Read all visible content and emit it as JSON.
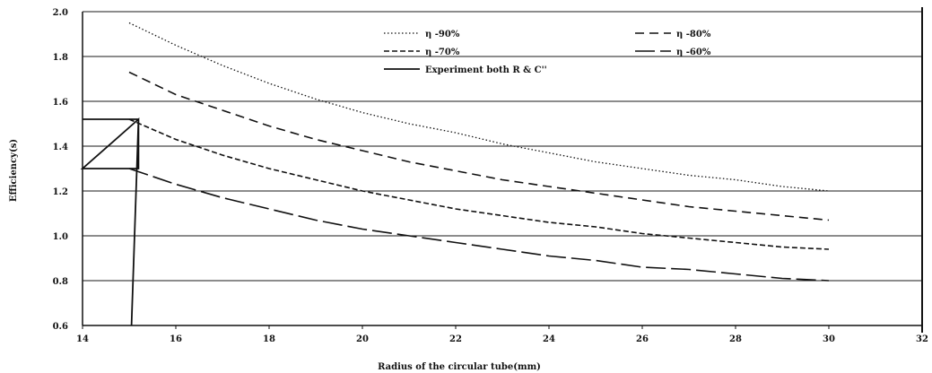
{
  "chart_data": {
    "type": "line",
    "title": "",
    "xlabel": "Radius of the circular tube(mm)",
    "ylabel": "Efficiency(s)",
    "xlim": [
      14,
      32
    ],
    "ylim": [
      0.6,
      2.0
    ],
    "xticks": [
      "14",
      "16",
      "18",
      "20",
      "22",
      "24",
      "26",
      "28",
      "30",
      "32"
    ],
    "yticks": [
      "0.6",
      "0.8",
      "1.0",
      "1.2",
      "1.4",
      "1.6",
      "1.8",
      "2.0"
    ],
    "grid": "horizontal",
    "legend_position": "top",
    "series": [
      {
        "name": "η -90%",
        "style": "dotted",
        "x": [
          15,
          16,
          17,
          18,
          19,
          20,
          21,
          22,
          23,
          24,
          25,
          26,
          27,
          28,
          29,
          30
        ],
        "y": [
          1.95,
          1.85,
          1.76,
          1.68,
          1.61,
          1.55,
          1.5,
          1.46,
          1.41,
          1.37,
          1.33,
          1.3,
          1.27,
          1.25,
          1.22,
          1.2
        ]
      },
      {
        "name": "η -80%",
        "style": "dashed",
        "x": [
          15,
          16,
          17,
          18,
          19,
          20,
          21,
          22,
          23,
          24,
          25,
          26,
          27,
          28,
          29,
          30
        ],
        "y": [
          1.73,
          1.63,
          1.56,
          1.49,
          1.43,
          1.38,
          1.33,
          1.29,
          1.25,
          1.22,
          1.19,
          1.16,
          1.13,
          1.11,
          1.09,
          1.07
        ]
      },
      {
        "name": "η -70%",
        "style": "short-dash",
        "x": [
          15,
          16,
          17,
          18,
          19,
          20,
          21,
          22,
          23,
          24,
          25,
          26,
          27,
          28,
          29,
          30
        ],
        "y": [
          1.52,
          1.43,
          1.36,
          1.3,
          1.25,
          1.2,
          1.16,
          1.12,
          1.09,
          1.06,
          1.04,
          1.01,
          0.99,
          0.97,
          0.95,
          0.94
        ]
      },
      {
        "name": "η -60%",
        "style": "long-dash",
        "x": [
          15,
          16,
          17,
          18,
          19,
          20,
          21,
          22,
          23,
          24,
          25,
          26,
          27,
          28,
          29,
          30
        ],
        "y": [
          1.3,
          1.23,
          1.17,
          1.12,
          1.07,
          1.03,
          1.0,
          0.97,
          0.94,
          0.91,
          0.89,
          0.86,
          0.85,
          0.83,
          0.81,
          0.8
        ]
      },
      {
        "name": "Experiment both R & C''",
        "style": "solid",
        "x": [
          14,
          15.2,
          15.2,
          15.2,
          14,
          15.2,
          15.05
        ],
        "y": [
          1.52,
          1.52,
          1.3,
          1.3,
          1.3,
          1.52,
          0.6
        ]
      }
    ]
  },
  "colors": {
    "line": "#111111",
    "grid": "#1a1a1a",
    "background": "#ffffff"
  }
}
